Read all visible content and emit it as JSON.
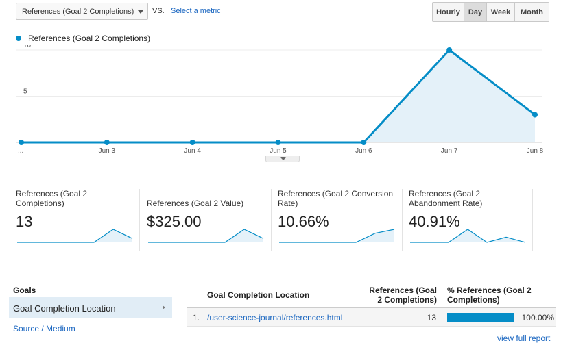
{
  "toolbar": {
    "metric_select": "References (Goal 2 Completions)",
    "vs_label": "VS.",
    "select_metric_link": "Select a metric",
    "periods": [
      "Hourly",
      "Day",
      "Week",
      "Month"
    ],
    "active_period": "Day"
  },
  "chart_data": {
    "type": "area",
    "series": [
      {
        "name": "References (Goal 2 Completions)",
        "values": [
          0,
          0,
          0,
          0,
          0,
          10,
          3
        ]
      }
    ],
    "x": [
      "...",
      "Jun 3",
      "Jun 4",
      "Jun 5",
      "Jun 6",
      "Jun 7",
      "Jun 8"
    ],
    "y_ticks": [
      "10",
      "5"
    ],
    "ylim": [
      0,
      10
    ],
    "grid": true,
    "legend": "top-left",
    "colors": {
      "line": "#058dc7",
      "fill": "#e4f1f9"
    }
  },
  "scorecards": [
    {
      "label": "References (Goal 2 Completions)",
      "value": "13",
      "sparkline": [
        0,
        0,
        0,
        0,
        0,
        10,
        3
      ]
    },
    {
      "label": "References (Goal 2 Value)",
      "value": "$325.00",
      "sparkline": [
        0,
        0,
        0,
        0,
        0,
        10,
        3
      ]
    },
    {
      "label": "References (Goal 2 Conversion Rate)",
      "value": "10.66%",
      "sparkline": [
        0,
        0,
        0,
        0,
        0,
        7,
        10
      ]
    },
    {
      "label": "References (Goal 2 Abandonment Rate)",
      "value": "40.91%",
      "sparkline": [
        0,
        0,
        0,
        10,
        0,
        4,
        0
      ]
    }
  ],
  "goals": {
    "header": "Goals",
    "active_item": "Goal Completion Location",
    "items": [
      "Source / Medium"
    ]
  },
  "table": {
    "headers": [
      "Goal Completion Location",
      "References (Goal 2 Completions)",
      "% References (Goal 2 Completions)"
    ],
    "rows": [
      {
        "num": "1.",
        "location": "/user-science-journal/references.html",
        "value": "13",
        "percent": "100.00%",
        "share": 1.0
      }
    ],
    "view_full_report": "view full report"
  }
}
